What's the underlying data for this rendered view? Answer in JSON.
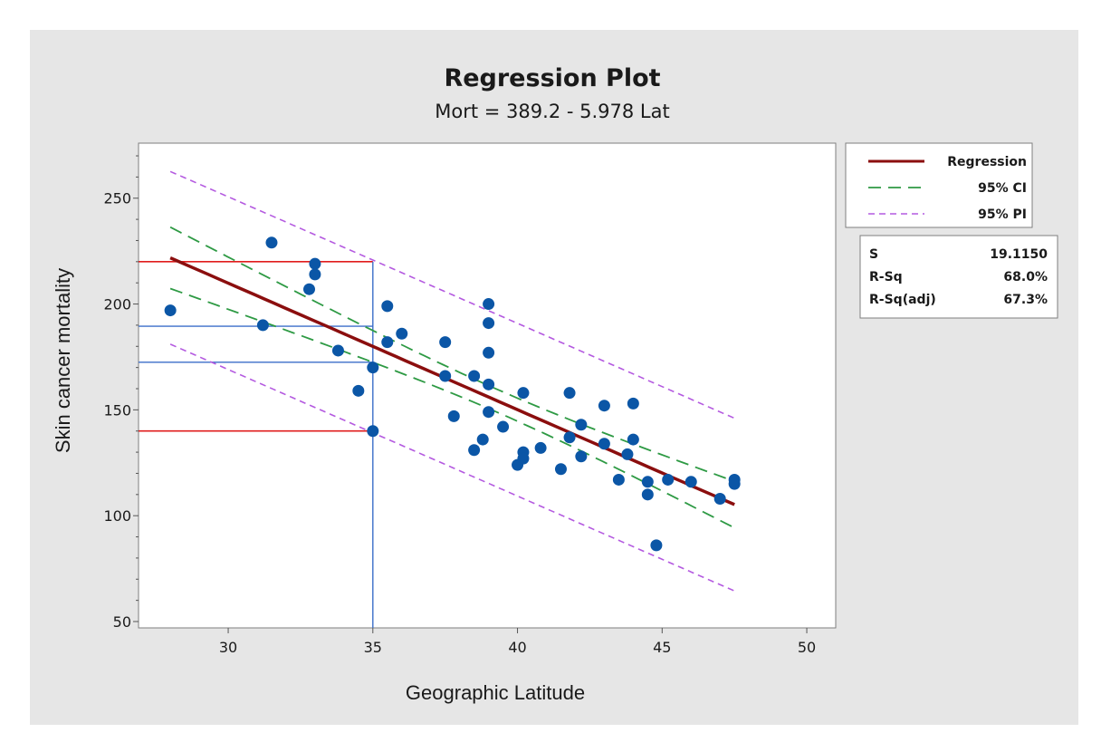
{
  "chart_data": {
    "type": "scatter",
    "title": "Regression Plot",
    "subtitle": "Mort = 389.2 - 5.978 Lat",
    "xlabel": "Geographic Latitude",
    "ylabel": "Skin cancer mortality",
    "xlim": [
      26.9,
      51.0
    ],
    "ylim": [
      47,
      276
    ],
    "xticks": [
      30,
      35,
      40,
      45,
      50
    ],
    "yticks": [
      50,
      100,
      150,
      200,
      250
    ],
    "grid": false,
    "legend_position": "right",
    "points": [
      {
        "x": 28.0,
        "y": 197
      },
      {
        "x": 31.2,
        "y": 190
      },
      {
        "x": 31.5,
        "y": 229
      },
      {
        "x": 32.8,
        "y": 207
      },
      {
        "x": 33.0,
        "y": 219
      },
      {
        "x": 33.0,
        "y": 214
      },
      {
        "x": 33.8,
        "y": 178
      },
      {
        "x": 34.5,
        "y": 159
      },
      {
        "x": 35.0,
        "y": 170
      },
      {
        "x": 35.0,
        "y": 140
      },
      {
        "x": 35.5,
        "y": 199
      },
      {
        "x": 35.5,
        "y": 182
      },
      {
        "x": 36.0,
        "y": 186
      },
      {
        "x": 37.5,
        "y": 182
      },
      {
        "x": 37.5,
        "y": 166
      },
      {
        "x": 37.8,
        "y": 147
      },
      {
        "x": 38.5,
        "y": 166
      },
      {
        "x": 38.5,
        "y": 131
      },
      {
        "x": 38.8,
        "y": 136
      },
      {
        "x": 39.0,
        "y": 200
      },
      {
        "x": 39.0,
        "y": 191
      },
      {
        "x": 39.0,
        "y": 177
      },
      {
        "x": 39.0,
        "y": 162
      },
      {
        "x": 39.0,
        "y": 149
      },
      {
        "x": 39.5,
        "y": 142
      },
      {
        "x": 40.0,
        "y": 124
      },
      {
        "x": 40.2,
        "y": 158
      },
      {
        "x": 40.2,
        "y": 130
      },
      {
        "x": 40.2,
        "y": 127
      },
      {
        "x": 40.8,
        "y": 132
      },
      {
        "x": 41.5,
        "y": 122
      },
      {
        "x": 41.8,
        "y": 158
      },
      {
        "x": 41.8,
        "y": 137
      },
      {
        "x": 42.2,
        "y": 143
      },
      {
        "x": 42.2,
        "y": 128
      },
      {
        "x": 43.0,
        "y": 152
      },
      {
        "x": 43.0,
        "y": 134
      },
      {
        "x": 43.5,
        "y": 117
      },
      {
        "x": 43.8,
        "y": 129
      },
      {
        "x": 44.0,
        "y": 153
      },
      {
        "x": 44.0,
        "y": 136
      },
      {
        "x": 44.5,
        "y": 116
      },
      {
        "x": 44.5,
        "y": 110
      },
      {
        "x": 44.8,
        "y": 86
      },
      {
        "x": 45.2,
        "y": 117
      },
      {
        "x": 46.0,
        "y": 116
      },
      {
        "x": 47.0,
        "y": 108
      },
      {
        "x": 47.5,
        "y": 117
      },
      {
        "x": 47.5,
        "y": 115
      }
    ],
    "regression": {
      "intercept": 389.2,
      "slope": -5.978,
      "x_range": [
        28.0,
        47.5
      ]
    },
    "ci95": {
      "x_center": 39.4,
      "half_width_at_center": 5.4,
      "half_width_at_ends": 14.5
    },
    "pi95": {
      "half_width": 40.8
    },
    "reference_lines": {
      "vertical_x": 35,
      "horizontal_red": [
        220,
        140
      ],
      "horizontal_blue": [
        189.5,
        172.5
      ]
    },
    "legend": [
      {
        "label": "Regression",
        "style": "solid"
      },
      {
        "label": "95% CI",
        "style": "long-dash"
      },
      {
        "label": "95% PI",
        "style": "short-dash"
      }
    ],
    "stats": [
      {
        "label": "S",
        "value": "19.1150"
      },
      {
        "label": "R-Sq",
        "value": "68.0%"
      },
      {
        "label": "R-Sq(adj)",
        "value": "67.3%"
      }
    ]
  },
  "colors": {
    "panel_background": "#e6e6e6",
    "plot_background": "#ffffff",
    "points": "#0b56a6",
    "regression": "#8b0e0e",
    "ci": "#2e9a44",
    "pi": "#b45ae0",
    "reference_red": "#e01c1c",
    "reference_blue": "#3b6ec9"
  }
}
